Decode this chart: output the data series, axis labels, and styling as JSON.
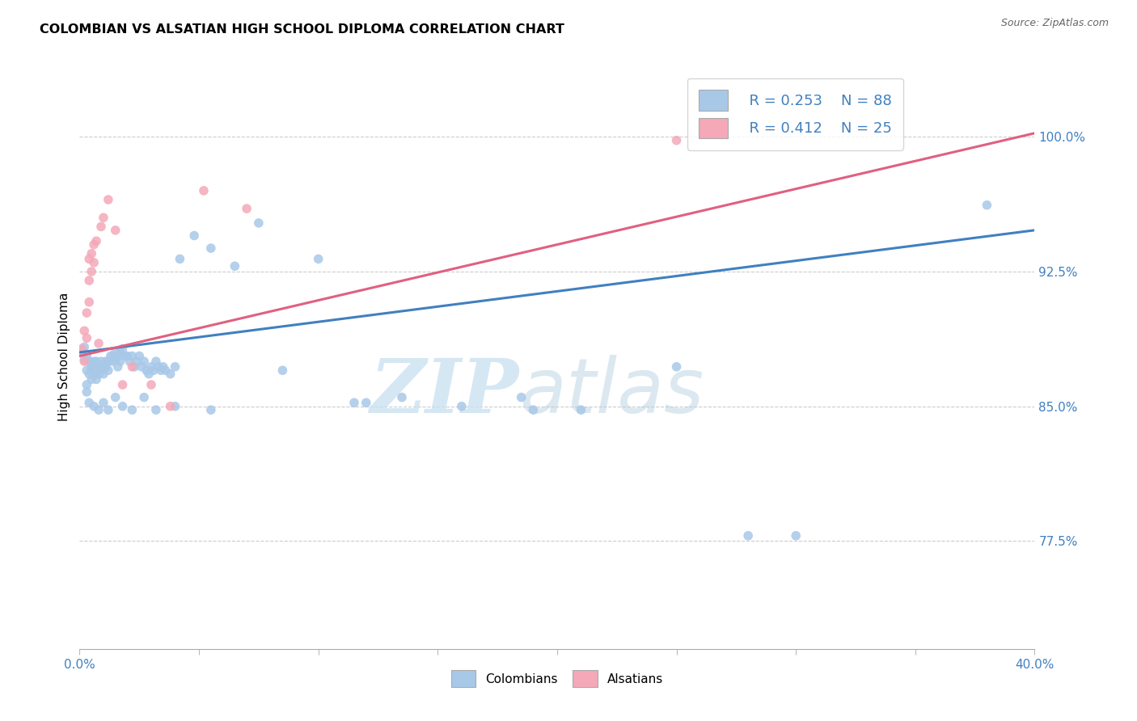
{
  "title": "COLOMBIAN VS ALSATIAN HIGH SCHOOL DIPLOMA CORRELATION CHART",
  "source": "Source: ZipAtlas.com",
  "ylabel": "High School Diploma",
  "xlim": [
    0.0,
    0.4
  ],
  "ylim": [
    0.715,
    1.04
  ],
  "yticks": [
    0.775,
    0.85,
    0.925,
    1.0
  ],
  "ytick_labels": [
    "77.5%",
    "85.0%",
    "92.5%",
    "100.0%"
  ],
  "xticks": [
    0.0,
    0.05,
    0.1,
    0.15,
    0.2,
    0.25,
    0.3,
    0.35,
    0.4
  ],
  "legend_r_blue": "R = 0.253",
  "legend_n_blue": "N = 88",
  "legend_r_pink": "R = 0.412",
  "legend_n_pink": "N = 25",
  "blue_scatter_color": "#a8c8e8",
  "pink_scatter_color": "#f4a8b8",
  "blue_line_color": "#4080c0",
  "pink_line_color": "#e06080",
  "label_color": "#4080c0",
  "blue_x": [
    0.001,
    0.002,
    0.002,
    0.003,
    0.003,
    0.003,
    0.004,
    0.004,
    0.005,
    0.005,
    0.005,
    0.006,
    0.006,
    0.006,
    0.007,
    0.007,
    0.007,
    0.008,
    0.008,
    0.009,
    0.009,
    0.01,
    0.01,
    0.011,
    0.011,
    0.012,
    0.012,
    0.013,
    0.014,
    0.014,
    0.015,
    0.015,
    0.016,
    0.016,
    0.017,
    0.017,
    0.018,
    0.019,
    0.02,
    0.021,
    0.022,
    0.023,
    0.024,
    0.025,
    0.026,
    0.027,
    0.028,
    0.029,
    0.03,
    0.031,
    0.032,
    0.033,
    0.034,
    0.035,
    0.036,
    0.038,
    0.04,
    0.042,
    0.048,
    0.055,
    0.065,
    0.075,
    0.085,
    0.1,
    0.115,
    0.135,
    0.16,
    0.185,
    0.21,
    0.25,
    0.3,
    0.38,
    0.003,
    0.004,
    0.006,
    0.008,
    0.01,
    0.012,
    0.015,
    0.018,
    0.022,
    0.027,
    0.032,
    0.04,
    0.055,
    0.12,
    0.19,
    0.28
  ],
  "blue_y": [
    0.88,
    0.883,
    0.876,
    0.87,
    0.878,
    0.862,
    0.868,
    0.875,
    0.872,
    0.865,
    0.87,
    0.875,
    0.868,
    0.872,
    0.87,
    0.875,
    0.865,
    0.872,
    0.868,
    0.87,
    0.875,
    0.872,
    0.868,
    0.875,
    0.872,
    0.875,
    0.87,
    0.878,
    0.875,
    0.878,
    0.88,
    0.876,
    0.878,
    0.872,
    0.88,
    0.875,
    0.882,
    0.878,
    0.878,
    0.875,
    0.878,
    0.872,
    0.875,
    0.878,
    0.872,
    0.875,
    0.87,
    0.868,
    0.872,
    0.87,
    0.875,
    0.872,
    0.87,
    0.872,
    0.87,
    0.868,
    0.872,
    0.932,
    0.945,
    0.938,
    0.928,
    0.952,
    0.87,
    0.932,
    0.852,
    0.855,
    0.85,
    0.855,
    0.848,
    0.872,
    0.778,
    0.962,
    0.858,
    0.852,
    0.85,
    0.848,
    0.852,
    0.848,
    0.855,
    0.85,
    0.848,
    0.855,
    0.848,
    0.85,
    0.848,
    0.852,
    0.848,
    0.778
  ],
  "pink_x": [
    0.001,
    0.002,
    0.002,
    0.003,
    0.003,
    0.004,
    0.004,
    0.004,
    0.005,
    0.005,
    0.006,
    0.006,
    0.007,
    0.008,
    0.009,
    0.01,
    0.012,
    0.015,
    0.018,
    0.022,
    0.03,
    0.038,
    0.052,
    0.07,
    0.25
  ],
  "pink_y": [
    0.882,
    0.875,
    0.892,
    0.888,
    0.902,
    0.908,
    0.92,
    0.932,
    0.925,
    0.935,
    0.93,
    0.94,
    0.942,
    0.885,
    0.95,
    0.955,
    0.965,
    0.948,
    0.862,
    0.872,
    0.862,
    0.85,
    0.97,
    0.96,
    0.998
  ]
}
